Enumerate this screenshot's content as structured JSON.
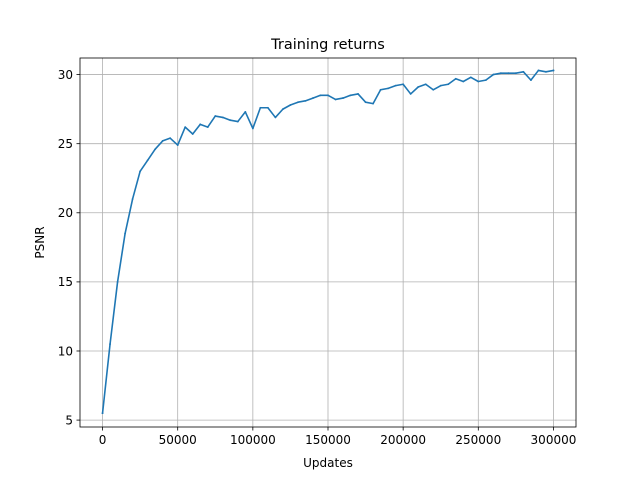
{
  "chart_data": {
    "type": "line",
    "title": "Training returns",
    "xlabel": "Updates",
    "ylabel": "PSNR",
    "xlim": [
      -15000,
      315000
    ],
    "ylim": [
      4.5,
      31.2
    ],
    "xticks": [
      0,
      50000,
      100000,
      150000,
      200000,
      250000,
      300000
    ],
    "xtick_labels": [
      "0",
      "50000",
      "100000",
      "150000",
      "200000",
      "250000",
      "300000"
    ],
    "yticks": [
      5,
      10,
      15,
      20,
      25,
      30
    ],
    "ytick_labels": [
      "5",
      "10",
      "15",
      "20",
      "25",
      "30"
    ],
    "grid": true,
    "legend": "none",
    "line_color": "#1f77b4",
    "series": [
      {
        "x": [
          0,
          5000,
          10000,
          15000,
          20000,
          25000,
          30000,
          35000,
          40000,
          45000,
          50000,
          55000,
          60000,
          65000,
          70000,
          75000,
          80000,
          85000,
          90000,
          95000,
          100000,
          105000,
          110000,
          115000,
          120000,
          125000,
          130000,
          135000,
          140000,
          145000,
          150000,
          155000,
          160000,
          165000,
          170000,
          175000,
          180000,
          185000,
          190000,
          195000,
          200000,
          205000,
          210000,
          215000,
          220000,
          225000,
          230000,
          235000,
          240000,
          245000,
          250000,
          255000,
          260000,
          265000,
          270000,
          275000,
          280000,
          285000,
          290000,
          295000,
          300000
        ],
        "y": [
          5.5,
          10.5,
          15.0,
          18.5,
          21.0,
          23.0,
          23.8,
          24.6,
          25.2,
          25.4,
          24.9,
          26.2,
          25.7,
          26.4,
          26.2,
          27.0,
          26.9,
          26.7,
          26.6,
          27.3,
          26.1,
          27.6,
          27.6,
          26.9,
          27.5,
          27.8,
          28.0,
          28.1,
          28.3,
          28.5,
          28.5,
          28.2,
          28.3,
          28.5,
          28.6,
          28.0,
          27.9,
          28.9,
          29.0,
          29.2,
          29.3,
          28.6,
          29.1,
          29.3,
          28.9,
          29.2,
          29.3,
          29.7,
          29.5,
          29.8,
          29.5,
          29.6,
          30.0,
          30.1,
          30.1,
          30.1,
          30.2,
          29.6,
          30.3,
          30.2,
          30.3
        ]
      }
    ]
  }
}
